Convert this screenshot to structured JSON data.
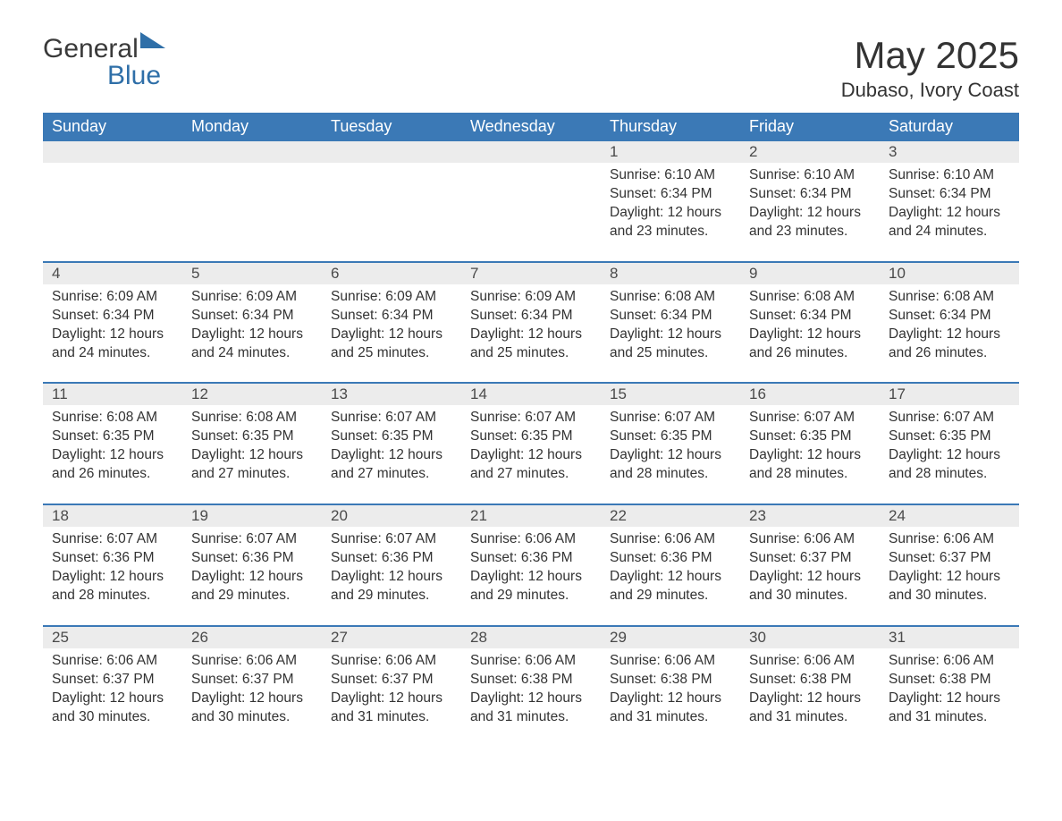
{
  "logo": {
    "text1": "General",
    "text2": "Blue"
  },
  "header": {
    "title": "May 2025",
    "subtitle": "Dubaso, Ivory Coast"
  },
  "colors": {
    "header_bg": "#3b79b6",
    "header_text": "#ffffff",
    "daynum_bg": "#ececec",
    "text": "#333333",
    "logo_blue": "#2f6fa8",
    "week_border": "#3b79b6",
    "background": "#ffffff"
  },
  "day_names": [
    "Sunday",
    "Monday",
    "Tuesday",
    "Wednesday",
    "Thursday",
    "Friday",
    "Saturday"
  ],
  "weeks": [
    [
      {
        "day": null
      },
      {
        "day": null
      },
      {
        "day": null
      },
      {
        "day": null
      },
      {
        "day": 1,
        "sunrise": "6:10 AM",
        "sunset": "6:34 PM",
        "daylight": "12 hours and 23 minutes."
      },
      {
        "day": 2,
        "sunrise": "6:10 AM",
        "sunset": "6:34 PM",
        "daylight": "12 hours and 23 minutes."
      },
      {
        "day": 3,
        "sunrise": "6:10 AM",
        "sunset": "6:34 PM",
        "daylight": "12 hours and 24 minutes."
      }
    ],
    [
      {
        "day": 4,
        "sunrise": "6:09 AM",
        "sunset": "6:34 PM",
        "daylight": "12 hours and 24 minutes."
      },
      {
        "day": 5,
        "sunrise": "6:09 AM",
        "sunset": "6:34 PM",
        "daylight": "12 hours and 24 minutes."
      },
      {
        "day": 6,
        "sunrise": "6:09 AM",
        "sunset": "6:34 PM",
        "daylight": "12 hours and 25 minutes."
      },
      {
        "day": 7,
        "sunrise": "6:09 AM",
        "sunset": "6:34 PM",
        "daylight": "12 hours and 25 minutes."
      },
      {
        "day": 8,
        "sunrise": "6:08 AM",
        "sunset": "6:34 PM",
        "daylight": "12 hours and 25 minutes."
      },
      {
        "day": 9,
        "sunrise": "6:08 AM",
        "sunset": "6:34 PM",
        "daylight": "12 hours and 26 minutes."
      },
      {
        "day": 10,
        "sunrise": "6:08 AM",
        "sunset": "6:34 PM",
        "daylight": "12 hours and 26 minutes."
      }
    ],
    [
      {
        "day": 11,
        "sunrise": "6:08 AM",
        "sunset": "6:35 PM",
        "daylight": "12 hours and 26 minutes."
      },
      {
        "day": 12,
        "sunrise": "6:08 AM",
        "sunset": "6:35 PM",
        "daylight": "12 hours and 27 minutes."
      },
      {
        "day": 13,
        "sunrise": "6:07 AM",
        "sunset": "6:35 PM",
        "daylight": "12 hours and 27 minutes."
      },
      {
        "day": 14,
        "sunrise": "6:07 AM",
        "sunset": "6:35 PM",
        "daylight": "12 hours and 27 minutes."
      },
      {
        "day": 15,
        "sunrise": "6:07 AM",
        "sunset": "6:35 PM",
        "daylight": "12 hours and 28 minutes."
      },
      {
        "day": 16,
        "sunrise": "6:07 AM",
        "sunset": "6:35 PM",
        "daylight": "12 hours and 28 minutes."
      },
      {
        "day": 17,
        "sunrise": "6:07 AM",
        "sunset": "6:35 PM",
        "daylight": "12 hours and 28 minutes."
      }
    ],
    [
      {
        "day": 18,
        "sunrise": "6:07 AM",
        "sunset": "6:36 PM",
        "daylight": "12 hours and 28 minutes."
      },
      {
        "day": 19,
        "sunrise": "6:07 AM",
        "sunset": "6:36 PM",
        "daylight": "12 hours and 29 minutes."
      },
      {
        "day": 20,
        "sunrise": "6:07 AM",
        "sunset": "6:36 PM",
        "daylight": "12 hours and 29 minutes."
      },
      {
        "day": 21,
        "sunrise": "6:06 AM",
        "sunset": "6:36 PM",
        "daylight": "12 hours and 29 minutes."
      },
      {
        "day": 22,
        "sunrise": "6:06 AM",
        "sunset": "6:36 PM",
        "daylight": "12 hours and 29 minutes."
      },
      {
        "day": 23,
        "sunrise": "6:06 AM",
        "sunset": "6:37 PM",
        "daylight": "12 hours and 30 minutes."
      },
      {
        "day": 24,
        "sunrise": "6:06 AM",
        "sunset": "6:37 PM",
        "daylight": "12 hours and 30 minutes."
      }
    ],
    [
      {
        "day": 25,
        "sunrise": "6:06 AM",
        "sunset": "6:37 PM",
        "daylight": "12 hours and 30 minutes."
      },
      {
        "day": 26,
        "sunrise": "6:06 AM",
        "sunset": "6:37 PM",
        "daylight": "12 hours and 30 minutes."
      },
      {
        "day": 27,
        "sunrise": "6:06 AM",
        "sunset": "6:37 PM",
        "daylight": "12 hours and 31 minutes."
      },
      {
        "day": 28,
        "sunrise": "6:06 AM",
        "sunset": "6:38 PM",
        "daylight": "12 hours and 31 minutes."
      },
      {
        "day": 29,
        "sunrise": "6:06 AM",
        "sunset": "6:38 PM",
        "daylight": "12 hours and 31 minutes."
      },
      {
        "day": 30,
        "sunrise": "6:06 AM",
        "sunset": "6:38 PM",
        "daylight": "12 hours and 31 minutes."
      },
      {
        "day": 31,
        "sunrise": "6:06 AM",
        "sunset": "6:38 PM",
        "daylight": "12 hours and 31 minutes."
      }
    ]
  ],
  "labels": {
    "sunrise": "Sunrise:",
    "sunset": "Sunset:",
    "daylight": "Daylight:"
  }
}
